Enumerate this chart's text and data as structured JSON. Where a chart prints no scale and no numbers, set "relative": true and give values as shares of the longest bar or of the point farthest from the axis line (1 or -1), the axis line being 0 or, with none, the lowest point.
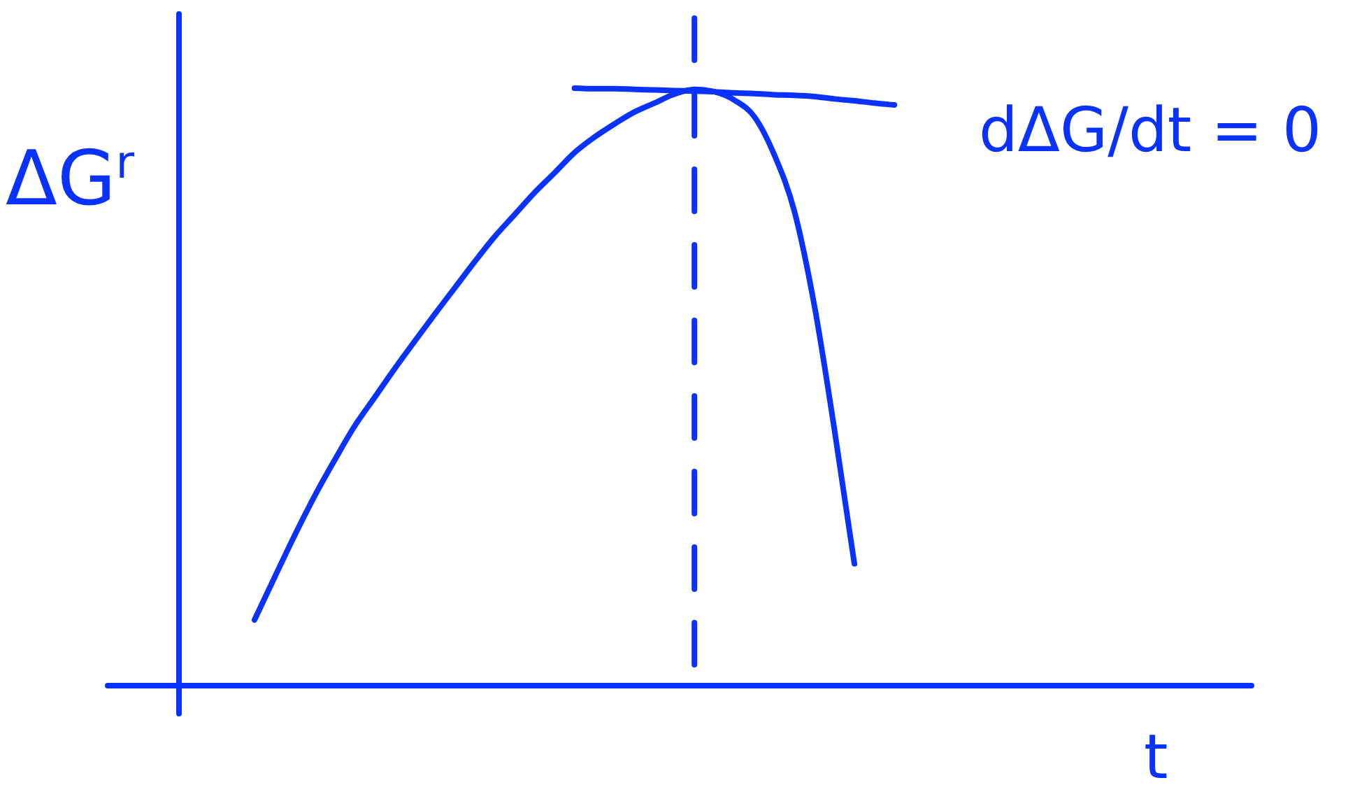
{
  "chart_data": {
    "type": "line",
    "relative": true,
    "ylabel": "ΔG$^{r}$",
    "xlabel": "t",
    "categories": [
      null,
      null,
      null,
      null,
      null,
      null,
      null,
      null,
      null,
      null,
      null,
      null,
      null,
      null,
      null,
      null,
      null,
      null,
      null,
      null,
      null,
      null,
      null,
      null,
      null,
      null,
      null,
      null,
      null,
      null,
      null,
      null,
      null
    ],
    "series": [
      {
        "color": "#0a32ff",
        "values": [
          0.11,
          0.181,
          0.251,
          0.317,
          0.377,
          0.434,
          0.482,
          0.53,
          0.576,
          0.621,
          0.665,
          0.709,
          0.751,
          0.788,
          0.825,
          0.858,
          0.892,
          0.918,
          0.94,
          0.96,
          0.975,
          0.99,
          0.998,
          0.994,
          0.98,
          0.952,
          0.888,
          0.794,
          0.636,
          0.429,
          0.204,
          null,
          null
        ]
      },
      {
        "type": "line",
        "color": "#0a32ff",
        "values": [
          null,
          null,
          null,
          null,
          null,
          null,
          null,
          null,
          null,
          null,
          null,
          null,
          null,
          null,
          null,
          null,
          1.0,
          0.999,
          0.999,
          0.998,
          0.997,
          0.996,
          0.995,
          0.994,
          0.992,
          0.991,
          0.989,
          0.988,
          0.986,
          0.982,
          0.979,
          0.975,
          0.972
        ]
      }
    ],
    "annotations": [
      "dΔG/dt = 0"
    ]
  }
}
